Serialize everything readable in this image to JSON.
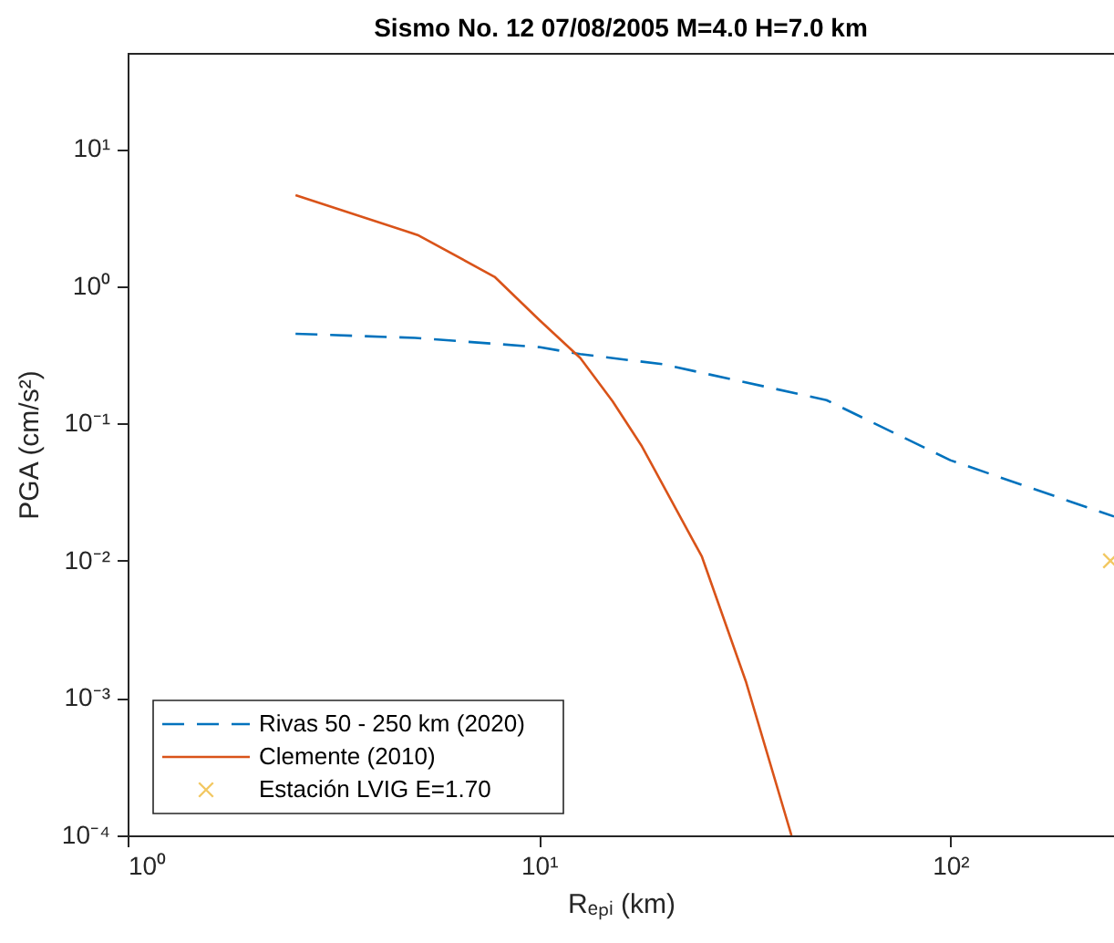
{
  "chart_data": {
    "type": "line",
    "title": "Sismo No. 12 07/08/2005 M=4.0 H=7.0 km",
    "xlabel": "Rₑₚᵢ (km)",
    "ylabel": "PGA (cm/s²)",
    "log": "xy",
    "xlim": [
      1,
      250
    ],
    "ylim": [
      0.0001,
      50
    ],
    "xticks": [
      {
        "value": 1,
        "label": "10⁰"
      },
      {
        "value": 10,
        "label": "10¹"
      },
      {
        "value": 100,
        "label": "10²"
      }
    ],
    "yticks": [
      {
        "value": 0.0001,
        "label": "10⁻⁴"
      },
      {
        "value": 0.001,
        "label": "10⁻³"
      },
      {
        "value": 0.01,
        "label": "10⁻²"
      },
      {
        "value": 0.1,
        "label": "10⁻¹"
      },
      {
        "value": 1,
        "label": "10⁰"
      },
      {
        "value": 10,
        "label": "10¹"
      }
    ],
    "grid": false,
    "legend": "bottom left",
    "series": [
      {
        "name": "Rivas 50 - 250 km (2020)",
        "color": "#0072bd",
        "line_style": "dashed",
        "x": [
          2.56,
          5,
          10,
          12.6,
          20,
          50,
          100,
          250
        ],
        "values": [
          0.45,
          0.42,
          0.36,
          0.32,
          0.27,
          0.148,
          0.054,
          0.021
        ]
      },
      {
        "name": "Clemente (2010)",
        "color": "#d95319",
        "line_style": "solid",
        "x": [
          2.56,
          5.07,
          7.8,
          10,
          12.6,
          15.1,
          17.8,
          24.9,
          31.9,
          41.1
        ],
        "values": [
          4.6,
          2.36,
          1.17,
          0.57,
          0.3,
          0.145,
          0.068,
          0.0107,
          0.0013,
          0.0001
        ]
      },
      {
        "name": "Estación LVIG E=1.70",
        "color": "#edb120",
        "type": "scatter",
        "marker": "cross",
        "x": [
          245
        ],
        "values": [
          0.01
        ]
      }
    ]
  }
}
